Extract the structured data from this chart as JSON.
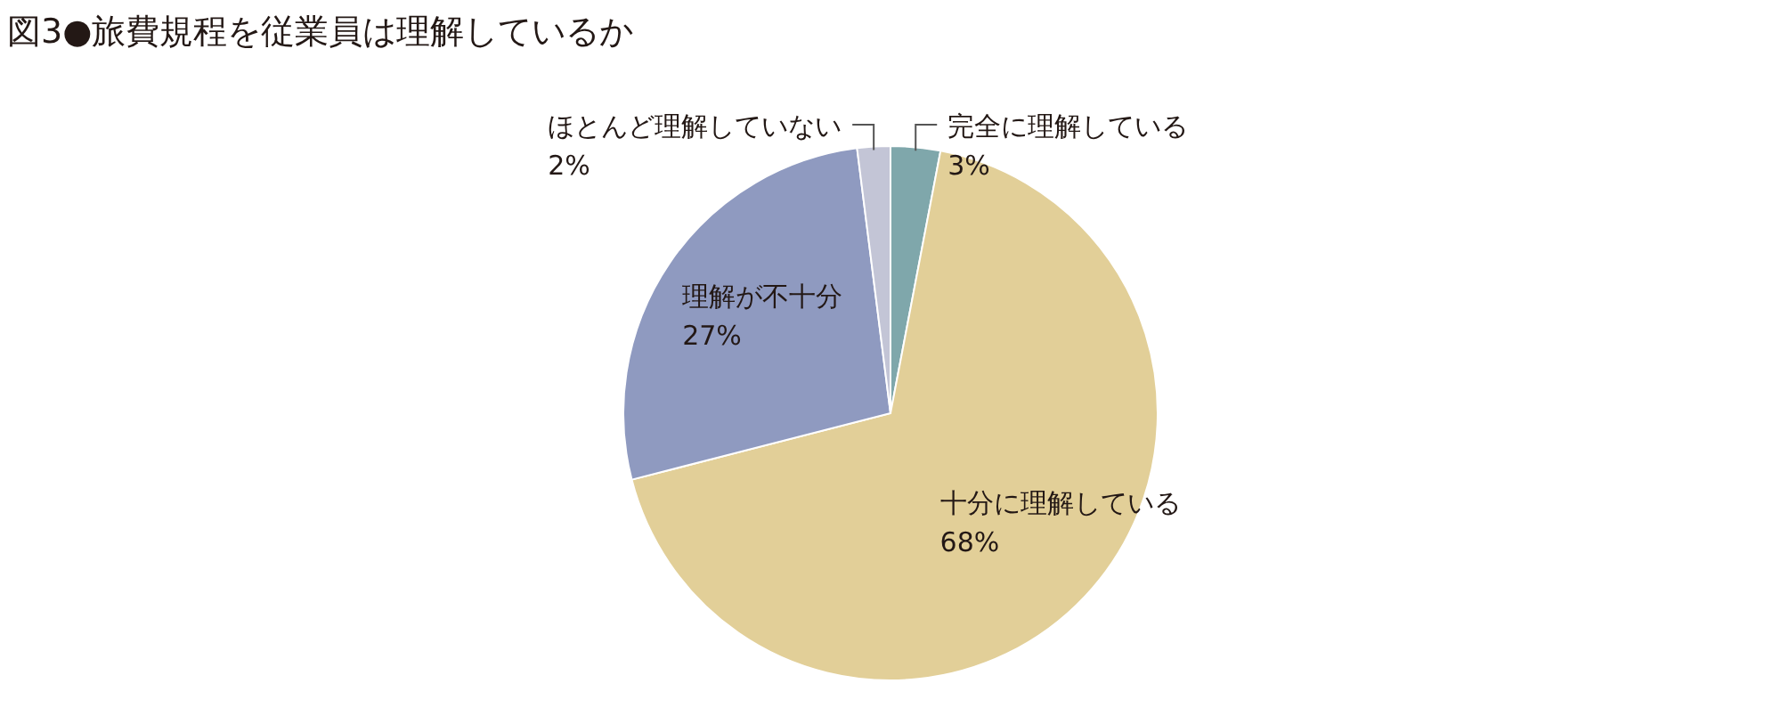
{
  "chart_data": {
    "type": "pie",
    "title": "図3●旅費規程を従業員は理解しているか",
    "categories": [
      "完全に理解している",
      "十分に理解している",
      "理解が不十分",
      "ほとんど理解していない"
    ],
    "values": [
      3,
      68,
      27,
      2
    ],
    "value_labels": [
      "3%",
      "68%",
      "27%",
      "2%"
    ],
    "colors": [
      "#7fa7ab",
      "#e2cf98",
      "#8f9ac0",
      "#c3c5d6"
    ]
  }
}
